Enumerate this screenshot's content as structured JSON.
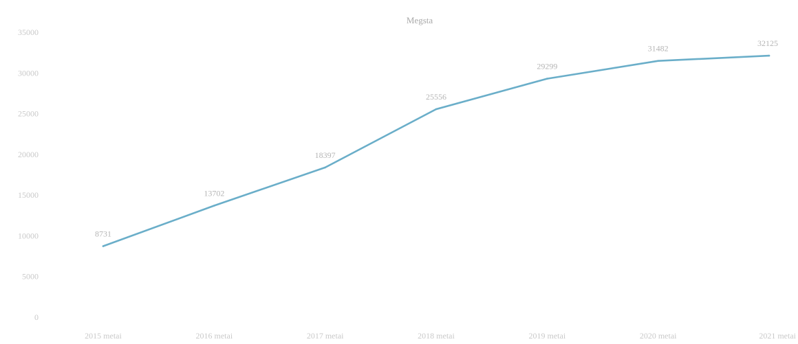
{
  "chart_data": {
    "type": "line",
    "title": "Megsta",
    "xlabel": "",
    "ylabel": "",
    "categories": [
      "2015 metai",
      "2016 metai",
      "2017 metai",
      "2018 metai",
      "2019 metai",
      "2020 metai",
      "2021 metai"
    ],
    "series": [
      {
        "values": [
          8731,
          13702,
          18397,
          25556,
          29299,
          31482,
          32125
        ]
      }
    ],
    "data_labels": [
      "8731",
      "13702",
      "18397",
      "25556",
      "29299",
      "31482",
      "32125"
    ],
    "y_ticks": [
      "0",
      "5000",
      "10000",
      "15000",
      "20000",
      "25000",
      "30000",
      "35000"
    ],
    "ylim": [
      0,
      35000
    ],
    "grid": false,
    "legend": "none",
    "line_color": "#6aaec9"
  }
}
